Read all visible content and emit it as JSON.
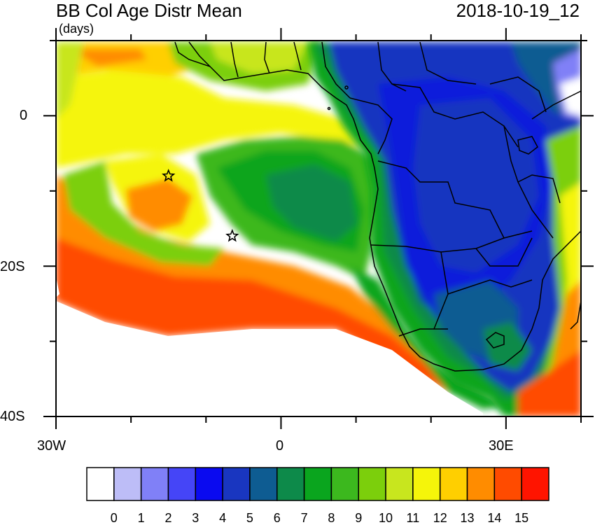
{
  "header": {
    "title": "BB Col Age Distr Mean",
    "units": "(days)",
    "date": "2018-10-19_12"
  },
  "map": {
    "lon_range": [
      -30,
      40
    ],
    "lat_range": [
      -40,
      10
    ],
    "x_tick_labels": [
      "30W",
      "0",
      "30E"
    ],
    "y_tick_labels": [
      "0",
      "20S",
      "40S"
    ],
    "markers": [
      "star",
      "star"
    ]
  },
  "colorbar": {
    "labels": [
      "0",
      "1",
      "2",
      "3",
      "4",
      "5",
      "6",
      "7",
      "8",
      "9",
      "10",
      "11",
      "12",
      "13",
      "14",
      "15"
    ],
    "colors": [
      "#ffffff",
      "#bdbdf7",
      "#8080f7",
      "#4545f7",
      "#0a0af0",
      "#1936c0",
      "#0e5c92",
      "#0d8a4a",
      "#0aa51e",
      "#3cb81e",
      "#7ccf0c",
      "#c8e61e",
      "#f5f50a",
      "#ffcf00",
      "#ff8c00",
      "#ff4b00",
      "#ff1400"
    ]
  }
}
